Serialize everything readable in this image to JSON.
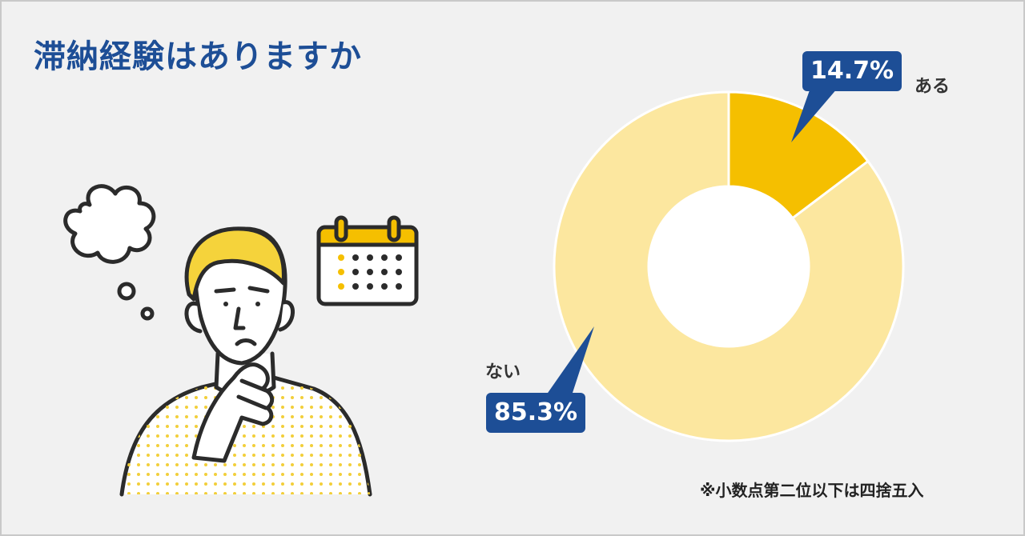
{
  "header": {
    "title": "滞納経験はありますか"
  },
  "footer": {
    "note": "※小数点第二位以下は四捨五入"
  },
  "chart_data": {
    "type": "pie",
    "donut": true,
    "title": "滞納経験はありますか",
    "slices": [
      {
        "label": "ある",
        "value": 14.7,
        "value_label": "14.7%",
        "color": "#f5bf00"
      },
      {
        "label": "ない",
        "value": 85.3,
        "value_label": "85.3%",
        "color": "#fce79f"
      }
    ],
    "callout_color": "#1d4e96",
    "legend": "none"
  },
  "illustration": {
    "icons": [
      "thought-bubble-icon",
      "calendar-icon",
      "thinking-person-illustration"
    ]
  }
}
